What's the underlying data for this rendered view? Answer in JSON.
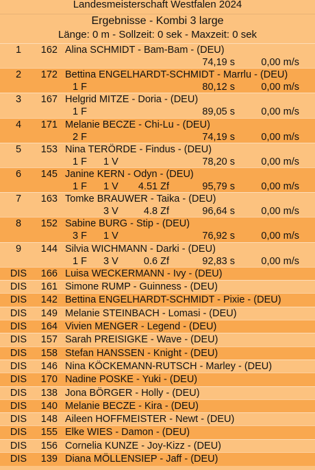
{
  "header": {
    "event": "Landesmeisterschaft Westfalen 2024",
    "title": "Ergebnisse - Kombi 3 large",
    "info": "Länge: 0 m - Sollzeit: 0 sek - Maxzeit: 0 sek"
  },
  "results": [
    {
      "rank": "1",
      "number": "162",
      "name": "Alina SCHMIDT - Bam-Bam - (DEU)",
      "time": "74,19 s",
      "speed": "0,00 m/s"
    },
    {
      "rank": "2",
      "number": "172",
      "name": "Bettina ENGELHARDT-SCHMIDT - Marrlu - (DEU)",
      "faults": "1 F",
      "time": "80,12 s",
      "speed": "0,00 m/s"
    },
    {
      "rank": "3",
      "number": "167",
      "name": "Helgrid MITZE - Doria - (DEU)",
      "faults": "1 F",
      "time": "89,05 s",
      "speed": "0,00 m/s"
    },
    {
      "rank": "4",
      "number": "171",
      "name": "Melanie BECZE - Chi-Lu - (DEU)",
      "faults": "2 F",
      "time": "74,19 s",
      "speed": "0,00 m/s"
    },
    {
      "rank": "5",
      "number": "153",
      "name": "Nina TERÖRDE - Findus - (DEU)",
      "faults": "1 F",
      "refusals": "1 V",
      "time": "78,20 s",
      "speed": "0,00 m/s"
    },
    {
      "rank": "6",
      "number": "145",
      "name": "Janine KERN - Odyn - (DEU)",
      "faults": "1 F",
      "refusals": "1 V",
      "time_faults": "4.51 Zf",
      "time": "95,79 s",
      "speed": "0,00 m/s"
    },
    {
      "rank": "7",
      "number": "163",
      "name": "Tomke BRAUWER - Taika - (DEU)",
      "refusals": "3 V",
      "time_faults": "4.8 Zf",
      "time": "96,64 s",
      "speed": "0,00 m/s"
    },
    {
      "rank": "8",
      "number": "152",
      "name": "Sabine BURG - Stip - (DEU)",
      "faults": "3 F",
      "refusals": "1 V",
      "time": "76,92 s",
      "speed": "0,00 m/s"
    },
    {
      "rank": "9",
      "number": "144",
      "name": "Silvia WICHMANN - Darki - (DEU)",
      "faults": "1 F",
      "refusals": "3 V",
      "time_faults": "0.6 Zf",
      "time": "92,83 s",
      "speed": "0,00 m/s"
    },
    {
      "rank": "DIS",
      "number": "166",
      "name": "Luisa WECKERMANN - Ivy - (DEU)"
    },
    {
      "rank": "DIS",
      "number": "161",
      "name": "Simone RUMP - Guinness - (DEU)"
    },
    {
      "rank": "DIS",
      "number": "142",
      "name": "Bettina ENGELHARDT-SCHMIDT - Pixie - (DEU)"
    },
    {
      "rank": "DIS",
      "number": "149",
      "name": "Melanie STEINBACH - Lomasi - (DEU)"
    },
    {
      "rank": "DIS",
      "number": "164",
      "name": "Vivien MENGER - Legend - (DEU)"
    },
    {
      "rank": "DIS",
      "number": "157",
      "name": "Sarah PREISIGKE - Wave - (DEU)"
    },
    {
      "rank": "DIS",
      "number": "158",
      "name": "Stefan HANSSEN - Knight - (DEU)"
    },
    {
      "rank": "DIS",
      "number": "146",
      "name": "Nina KÖCKEMANN-RUTSCH - Marley - (DEU)"
    },
    {
      "rank": "DIS",
      "number": "170",
      "name": "Nadine POSKE - Yuki - (DEU)"
    },
    {
      "rank": "DIS",
      "number": "138",
      "name": "Jona BÖRGER - Holly - (DEU)"
    },
    {
      "rank": "DIS",
      "number": "140",
      "name": "Melanie BECZE - Kira - (DEU)"
    },
    {
      "rank": "DIS",
      "number": "148",
      "name": "Aileen HOFFMEISTER - Newt - (DEU)"
    },
    {
      "rank": "DIS",
      "number": "155",
      "name": "Elke WIES - Damon - (DEU)"
    },
    {
      "rank": "DIS",
      "number": "156",
      "name": "Cornelia KUNZE - Joy-Kizz - (DEU)"
    },
    {
      "rank": "DIS",
      "number": "139",
      "name": "Diana MÖLLENSIEP - Jaff - (DEU)"
    }
  ]
}
